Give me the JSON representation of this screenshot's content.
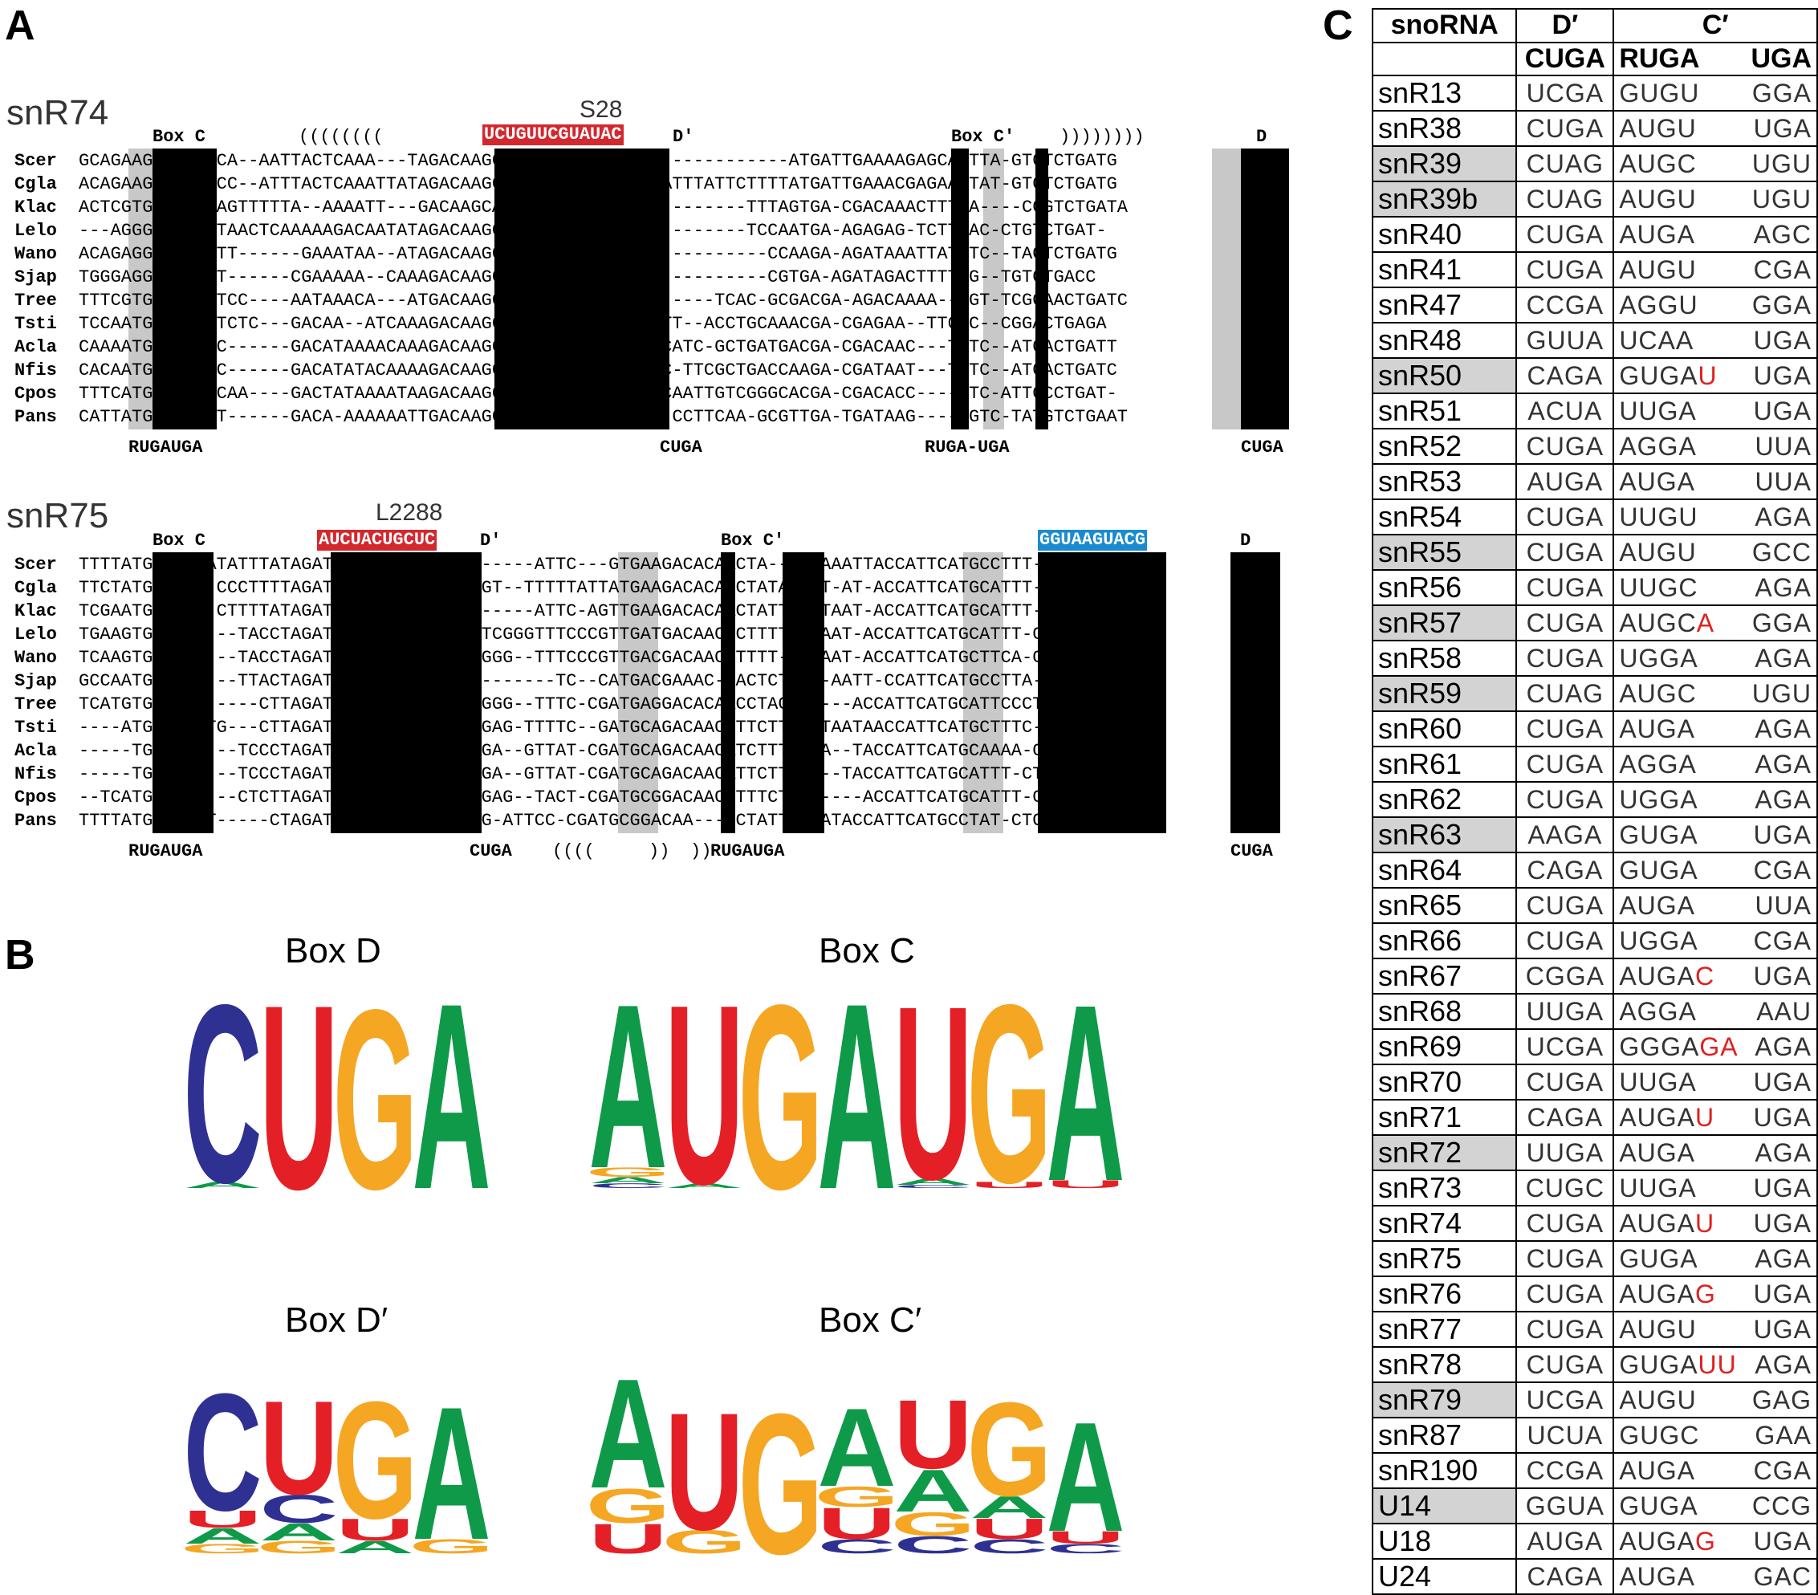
{
  "panels": {
    "a": "A",
    "b": "B",
    "c": "C"
  },
  "snr74": {
    "title": "snR74",
    "target": "S28",
    "guide": "UCUGUUCGUAUAC",
    "box_c": "Box C",
    "box_cp": "Box C′",
    "box_dp": "D′",
    "box_d": "D",
    "stem_open": "((((((((",
    "stem_close": "))))))))",
    "rows": [
      {
        "sp": "Scer",
        "seq": "GCAGAAGATGAAACA--AATTACTCAAA---TAGACAAGCATATGTCTGATCTTC------------ATGATTGAAAAGAGCAATTA-GTGTCTGATG"
      },
      {
        "sp": "Cgla",
        "seq": "ACAGAAGATGAAACC--ATTTACTCAAATTATAGACAAGCATATGTCTGATAAGAATTTATTCTTTTATGATTGAAACGAGAAATAT-GTGTCTGATG"
      },
      {
        "sp": "Klac",
        "seq": "ACTCGTGATGAAAAGTTTTTA--AAAATT---GACAAGCATATGTCTGAATCT----------TTTAGTGA-CGACAAACTTTAA----CCGTCTGATA"
      },
      {
        "sp": "Lelo",
        "seq": "---AGGGATGAATTAACTCAAAAAGACAATATAGACAAGCATATGTCTGACTTT---------TCCAATGA-AGAGAG-TCTTTAC-CTGTCTGAT-"
      },
      {
        "sp": "Wano",
        "seq": "ACAGAGGATGATATT------GAAATAA--ATAGACAAGCATATGTCTGATTTT-----------CCAAGA-AGATAAATTATTTC--TAGTCTGATG"
      },
      {
        "sp": "Sjap",
        "seq": "TGGGAGGATGAATT------CGAAAAA--CAAAGACAAGCATATGTCTGATAT------------CGTGA-AGATAGACTTTTCG--TGTCTGACC"
      },
      {
        "sp": "Tree",
        "seq": "TTTCGTGATGAGCTCC----AATAAACA---ATGACAAGCATATGTCTGAGCT-------TCAC-GCGACGA-AGACAAAA--TGT-TCGGAACTGATC"
      },
      {
        "sp": "Tsti",
        "seq": "TCCAATGATGAATTCTC---GACAA--ATCAAAGACAAGCATATGTCAAGCTGGTTT--ACCTGCAAACGA-CGAGAA--TTGTC--CGGACTGAGA"
      },
      {
        "sp": "Acla",
        "seq": "CAAAATGATGATTC------GACATAAAACAAAGACAAGCATATGTCCAAGTCAGCATC-GCTGATGACGA-CGACAAC---TGTC--ATGACTGATT"
      },
      {
        "sp": "Nfis",
        "seq": "CACAATGATGAATC------GACATATACAAAAGACAAGCATATGTCCAAGTCGGC-TTCGCTGACCAAGA-CGATAAT---TGTC--ATGACTGATC"
      },
      {
        "sp": "Cpos",
        "seq": "TTTCATGATGAGCCAA----GACTATAAAATAAGACAAGCATATGTCCAAGCTGGCAATTGTCGGGCACGA-CGACACC----GTC-ATTCCCTGAT-"
      },
      {
        "sp": "Pans",
        "seq": "CATTATGATGACAT------GACA-AAAAAATTGACAAGCATATGTCGGAGC----CCTTCAA-GCGTTGA-TGATAAG-----GTC-TATGTCTGAAT"
      }
    ],
    "foot_ruga": "RUGAUGA",
    "foot_cuga1": "CUGA",
    "foot_rugauga": "RUGA-UGA",
    "foot_cuga2": "CUGA"
  },
  "snr75": {
    "title": "snR75",
    "target": "L2288",
    "guide": "AUCUACUGCUC",
    "guide2": "GGUAAGUACG",
    "box_c": "Box C",
    "box_cp": "Box C′",
    "box_dp": "D′",
    "box_d": "D",
    "rows": [
      {
        "sp": "Scer",
        "seq": "TTTTATGATGAGATATTTATAGATGACGAGTCTGATC------ATTC---GTGAAGACACAACTA--TTAAAATTACCATTCATGCCTTT-CTGAAG"
      },
      {
        "sp": "Cgla",
        "seq": "TTCTATGATGAA-CCCTTTTAGATGACGAGTCTGAATAGT--TTTTTATTATGAAGACACATCTATAAATT-AT-ACCATTCATGCATTT-CTGA--"
      },
      {
        "sp": "Klac",
        "seq": "TCGAATGATGAG-CTTTTATAGATGACGAGTCTGA-CT-----ATTC-AGTTGAAGACACAACTATT--TTAAT-ACCATTCATGCATTT-CTGACT"
      },
      {
        "sp": "Lelo",
        "seq": "TGAAGTGATGAT---TACCTAGATGACGAGTCAGAACCTCGGGTTTCCCGTTGATGACAAC-CTTTTTTTAAT-ACCATTCATGCATTT-CTGATT"
      },
      {
        "sp": "Wano",
        "seq": "TCAAGTGATGAA---TACCTAGATGACGAGTCATAATCGGG--TTTCCCGTTGACGACAACCTTTT-TTTAAT-ACCATTCATGCTTCA-CTGATT"
      },
      {
        "sp": "Sjap",
        "seq": "GCCAATGAGGAA---TTACTAGATGACGAGTCTGATG--------TC--CATGACGAAAC-GACTCTATA-AATT-CCATTCATGCCTTA-CTGAGG"
      },
      {
        "sp": "Tree",
        "seq": "TCATGTGATGAT-----CTTAGATGACGAGTCCTATTCGGG--TTTC-CGATGAGGACACAACCTACCT----ACCATTCATGCATTCCCTGATC"
      },
      {
        "sp": "Tsti",
        "seq": "----ATGATGATTG---CTTAGATGACGAGTCTTATGCGAG-TTTTC--GATGCAGACAACCTTCTT--TTAATAACCATTCATGCTTTC-CTGA--"
      },
      {
        "sp": "Acla",
        "seq": "-----TGATGAT---TCCCTAGATGACGAGTCTTATTCGA--GTTAT-CGATGCAGACAACATCTTTTTTA--TACCATTCATGCAAAA-CTGA--"
      },
      {
        "sp": "Nfis",
        "seq": "-----TGATGAT---TCCCTAGATGACGAGTCTTATTCGA--GTTAT-CGATGCAGACAACATTCTTTT---TACCATTCATGCATTT-CTGA--"
      },
      {
        "sp": "Cpos",
        "seq": "--TCATGATGAT---CTCTTAGATGACGAGTCCTATTCGAG--TACT-CGATGCGGACAACCTTTCTTTT----ACCATTCATGCATTT-CTGAAC"
      },
      {
        "sp": "Pans",
        "seq": "TTTTATGATGACT-----CTAGATGACGAGTCCTACGGG-ATTCC-CGATGCGGACAA---CCTATTTTTATACCATTCATGCCTAT-CTGAA-"
      }
    ],
    "foot_ruga1": "RUGAUGA",
    "foot_cuga1": "CUGA",
    "foot_paren1": "((((",
    "foot_paren2": "))",
    "foot_paren3": "))",
    "foot_ruga2": "RUGAUGA",
    "foot_cuga2": "CUGA"
  },
  "logos": {
    "d": {
      "title": "Box  D",
      "letters": "CUGA"
    },
    "c": {
      "title": "Box C",
      "letters": "AUGAUGA"
    },
    "dp": {
      "title": "Box D′",
      "letters": "CUGA"
    },
    "cp": {
      "title": "Box C′",
      "letters": "AUGAUGA"
    }
  },
  "colors": {
    "A": "#0f9a49",
    "U": "#e41f26",
    "G": "#f5a623",
    "C": "#2e3192",
    "red": "#d2282e",
    "blue": "#1a8bd0"
  },
  "table": {
    "header": {
      "snorna": "snoRNA",
      "dprime": "D′",
      "cprime": "C′",
      "cuga": "CUGA",
      "ruga": "RUGA",
      "uga": "UGA"
    },
    "rows": [
      {
        "name": "snR13",
        "grey": false,
        "d": "UCGA",
        "r1": "GUGU",
        "r2": "",
        "c": "GGA"
      },
      {
        "name": "snR38",
        "grey": false,
        "d": "CUGA",
        "r1": "AUGU",
        "r2": "",
        "c": "UGA"
      },
      {
        "name": "snR39",
        "grey": true,
        "d": "CUAG",
        "r1": "AUGC",
        "r2": "",
        "c": "UGU"
      },
      {
        "name": "snR39b",
        "grey": true,
        "d": "CUAG",
        "r1": "AUGU",
        "r2": "",
        "c": "UGU"
      },
      {
        "name": "snR40",
        "grey": false,
        "d": "CUGA",
        "r1": "AUGA",
        "r2": "",
        "c": "AGC"
      },
      {
        "name": "snR41",
        "grey": false,
        "d": "CUGA",
        "r1": "AUGU",
        "r2": "",
        "c": "CGA"
      },
      {
        "name": "snR47",
        "grey": false,
        "d": "CCGA",
        "r1": "AGGU",
        "r2": "",
        "c": "GGA"
      },
      {
        "name": "snR48",
        "grey": false,
        "d": "GUUA",
        "r1": "UCAA",
        "r2": "",
        "c": "UGA"
      },
      {
        "name": "snR50",
        "grey": true,
        "d": "CAGA",
        "r1": "GUGA",
        "r2": "U",
        "c": "UGA"
      },
      {
        "name": "snR51",
        "grey": false,
        "d": "ACUA",
        "r1": "UUGA",
        "r2": "",
        "c": "UGA"
      },
      {
        "name": "snR52",
        "grey": false,
        "d": "CUGA",
        "r1": "AGGA",
        "r2": "",
        "c": "UUA"
      },
      {
        "name": "snR53",
        "grey": false,
        "d": "AUGA",
        "r1": "AUGA",
        "r2": "",
        "c": "UUA"
      },
      {
        "name": "snR54",
        "grey": false,
        "d": "CUGA",
        "r1": "UUGU",
        "r2": "",
        "c": "AGA"
      },
      {
        "name": "snR55",
        "grey": true,
        "d": "CUGA",
        "r1": "AUGU",
        "r2": "",
        "c": "GCC"
      },
      {
        "name": "snR56",
        "grey": false,
        "d": "CUGA",
        "r1": "UUGC",
        "r2": "",
        "c": "AGA"
      },
      {
        "name": "snR57",
        "grey": true,
        "d": "CUGA",
        "r1": "AUGC",
        "r2": "A",
        "c": "GGA"
      },
      {
        "name": "snR58",
        "grey": false,
        "d": "CUGA",
        "r1": "UGGA",
        "r2": "",
        "c": "AGA"
      },
      {
        "name": "snR59",
        "grey": true,
        "d": "CUAG",
        "r1": "AUGC",
        "r2": "",
        "c": "UGU"
      },
      {
        "name": "snR60",
        "grey": false,
        "d": "CUGA",
        "r1": "AUGA",
        "r2": "",
        "c": "AGA"
      },
      {
        "name": "snR61",
        "grey": false,
        "d": "CUGA",
        "r1": "AGGA",
        "r2": "",
        "c": "AGA"
      },
      {
        "name": "snR62",
        "grey": false,
        "d": "CUGA",
        "r1": "UGGA",
        "r2": "",
        "c": "AGA"
      },
      {
        "name": "snR63",
        "grey": true,
        "d": "AAGA",
        "r1": "GUGA",
        "r2": "",
        "c": "UGA"
      },
      {
        "name": "snR64",
        "grey": false,
        "d": "CAGA",
        "r1": "GUGA",
        "r2": "",
        "c": "CGA"
      },
      {
        "name": "snR65",
        "grey": false,
        "d": "CUGA",
        "r1": "AUGA",
        "r2": "",
        "c": "UUA"
      },
      {
        "name": "snR66",
        "grey": false,
        "d": "CUGA",
        "r1": "UGGA",
        "r2": "",
        "c": "CGA"
      },
      {
        "name": "snR67",
        "grey": false,
        "d": "CGGA",
        "r1": "AUGA",
        "r2": "C",
        "c": "UGA"
      },
      {
        "name": "snR68",
        "grey": false,
        "d": "UUGA",
        "r1": "AGGA",
        "r2": "",
        "c": "AAU"
      },
      {
        "name": "snR69",
        "grey": false,
        "d": "UCGA",
        "r1": "GGGA",
        "r2": "GA",
        "c": "AGA"
      },
      {
        "name": "snR70",
        "grey": false,
        "d": "CUGA",
        "r1": "UUGA",
        "r2": "",
        "c": "UGA"
      },
      {
        "name": "snR71",
        "grey": false,
        "d": "CAGA",
        "r1": "AUGA",
        "r2": "U",
        "c": "UGA"
      },
      {
        "name": "snR72",
        "grey": true,
        "d": "UUGA",
        "r1": "AUGA",
        "r2": "",
        "c": "AGA"
      },
      {
        "name": "snR73",
        "grey": false,
        "d": "CUGC",
        "r1": "UUGA",
        "r2": "",
        "c": "UGA"
      },
      {
        "name": "snR74",
        "grey": false,
        "d": "CUGA",
        "r1": "AUGA",
        "r2": "U",
        "c": "UGA"
      },
      {
        "name": "snR75",
        "grey": false,
        "d": "CUGA",
        "r1": "GUGA",
        "r2": "",
        "c": "AGA"
      },
      {
        "name": "snR76",
        "grey": false,
        "d": "CUGA",
        "r1": "AUGA",
        "r2": "G",
        "c": "UGA"
      },
      {
        "name": "snR77",
        "grey": false,
        "d": "CUGA",
        "r1": "AUGU",
        "r2": "",
        "c": "UGA"
      },
      {
        "name": "snR78",
        "grey": false,
        "d": "CUGA",
        "r1": "GUGA",
        "r2": "UU",
        "c": "AGA"
      },
      {
        "name": "snR79",
        "grey": true,
        "d": "UCGA",
        "r1": "AUGU",
        "r2": "",
        "c": "GAG"
      },
      {
        "name": "snR87",
        "grey": false,
        "d": "UCUA",
        "r1": "GUGC",
        "r2": "",
        "c": "GAA"
      },
      {
        "name": "snR190",
        "grey": false,
        "d": "CCGA",
        "r1": "AUGA",
        "r2": "",
        "c": "CGA"
      },
      {
        "name": "U14",
        "grey": true,
        "d": "GGUA",
        "r1": "GUGA",
        "r2": "",
        "c": "CCG"
      },
      {
        "name": "U18",
        "grey": false,
        "d": "AUGA",
        "r1": "AUGA",
        "r2": "G",
        "c": "UGA"
      },
      {
        "name": "U24",
        "grey": false,
        "d": "CAGA",
        "r1": "AUGA",
        "r2": "",
        "c": "GAC"
      }
    ]
  }
}
